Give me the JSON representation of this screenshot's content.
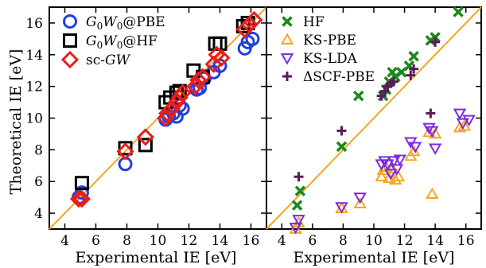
{
  "chart_data": [
    {
      "type": "scatter",
      "panel": "left",
      "xlabel": "Experimental IE [eV]",
      "ylabel": "Theoretical IE [eV]",
      "xlim": [
        3,
        17
      ],
      "ylim": [
        3,
        17
      ],
      "xticks": [
        4,
        6,
        8,
        10,
        12,
        14,
        16
      ],
      "yticks": [
        4,
        6,
        8,
        10,
        12,
        14,
        16
      ],
      "legend_position": "top-left",
      "diagonal_line": {
        "from": [
          3,
          3
        ],
        "to": [
          17,
          17
        ],
        "color": "#f5a623"
      },
      "series": [
        {
          "name": "G0W0@PBE",
          "legend_label": [
            "G",
            "0",
            "W",
            "0",
            "@PBE"
          ],
          "marker": "circle",
          "color": "#1f3fe0",
          "points": [
            [
              4.9,
              5.0
            ],
            [
              5.1,
              5.3
            ],
            [
              7.9,
              7.1
            ],
            [
              10.5,
              9.9
            ],
            [
              10.7,
              10.1
            ],
            [
              11.0,
              10.3
            ],
            [
              11.2,
              10.1
            ],
            [
              11.4,
              10.8
            ],
            [
              11.6,
              10.6
            ],
            [
              12.5,
              11.8
            ],
            [
              12.7,
              11.9
            ],
            [
              13.0,
              12.5
            ],
            [
              13.6,
              12.9
            ],
            [
              14.0,
              13.3
            ],
            [
              15.6,
              14.4
            ],
            [
              15.8,
              14.8
            ],
            [
              16.1,
              15.0
            ]
          ]
        },
        {
          "name": "G0W0@HF",
          "legend_label": [
            "G",
            "0",
            "W",
            "0",
            "@HF"
          ],
          "marker": "square",
          "color": "#000000",
          "points": [
            [
              5.1,
              5.9
            ],
            [
              7.9,
              8.1
            ],
            [
              9.2,
              8.3
            ],
            [
              10.5,
              11.0
            ],
            [
              10.8,
              11.3
            ],
            [
              11.2,
              11.6
            ],
            [
              11.4,
              11.7
            ],
            [
              12.3,
              13.0
            ],
            [
              12.9,
              12.6
            ],
            [
              13.7,
              14.7
            ],
            [
              14.0,
              14.7
            ],
            [
              15.5,
              15.8
            ],
            [
              15.8,
              16.0
            ]
          ]
        },
        {
          "name": "sc-GW",
          "legend_label": [
            "sc-",
            "GW"
          ],
          "marker": "diamond",
          "color": "#e61e1e",
          "points": [
            [
              4.9,
              4.9
            ],
            [
              5.1,
              4.9
            ],
            [
              7.9,
              7.9
            ],
            [
              9.2,
              8.8
            ],
            [
              10.5,
              10.0
            ],
            [
              10.6,
              10.3
            ],
            [
              10.9,
              10.6
            ],
            [
              11.2,
              11.0
            ],
            [
              11.4,
              11.3
            ],
            [
              11.6,
              11.6
            ],
            [
              12.4,
              12.0
            ],
            [
              12.6,
              12.4
            ],
            [
              12.9,
              12.6
            ],
            [
              13.6,
              13.4
            ],
            [
              13.8,
              14.0
            ],
            [
              14.1,
              13.8
            ],
            [
              15.6,
              15.6
            ],
            [
              15.9,
              15.9
            ],
            [
              16.2,
              16.2
            ]
          ]
        }
      ]
    },
    {
      "type": "scatter",
      "panel": "right",
      "xlabel": "Experimental IE [eV]",
      "ylabel": "",
      "xlim": [
        3,
        17
      ],
      "ylim": [
        3,
        17
      ],
      "xticks": [
        4,
        6,
        8,
        10,
        12,
        14,
        16
      ],
      "yticks": [
        4,
        6,
        8,
        10,
        12,
        14,
        16
      ],
      "legend_position": "top-left",
      "diagonal_line": {
        "from": [
          3,
          3
        ],
        "to": [
          17,
          17
        ],
        "color": "#f5a623"
      },
      "series": [
        {
          "name": "HF",
          "legend_label": [
            "HF"
          ],
          "marker": "x",
          "color": "#1a8a1a",
          "points": [
            [
              5.0,
              4.5
            ],
            [
              5.2,
              5.4
            ],
            [
              7.9,
              8.2
            ],
            [
              9.0,
              11.4
            ],
            [
              10.6,
              11.4
            ],
            [
              10.8,
              11.8
            ],
            [
              11.0,
              12.3
            ],
            [
              11.2,
              12.9
            ],
            [
              11.4,
              12.6
            ],
            [
              11.8,
              12.9
            ],
            [
              12.3,
              13.3
            ],
            [
              12.6,
              13.9
            ],
            [
              13.7,
              14.9
            ],
            [
              14.0,
              15.1
            ],
            [
              15.5,
              16.7
            ]
          ]
        },
        {
          "name": "KS-PBE",
          "legend_label": [
            "KS-PBE"
          ],
          "marker": "triangle-up",
          "color": "#f5a623",
          "points": [
            [
              4.9,
              3.0
            ],
            [
              5.1,
              3.4
            ],
            [
              7.9,
              4.3
            ],
            [
              9.1,
              4.6
            ],
            [
              10.5,
              6.3
            ],
            [
              10.6,
              6.7
            ],
            [
              10.8,
              6.9
            ],
            [
              11.0,
              6.2
            ],
            [
              11.2,
              6.8
            ],
            [
              11.4,
              6.1
            ],
            [
              11.6,
              6.3
            ],
            [
              12.4,
              7.6
            ],
            [
              12.6,
              7.9
            ],
            [
              13.6,
              9.1
            ],
            [
              13.8,
              5.2
            ],
            [
              14.0,
              9.0
            ],
            [
              15.6,
              9.4
            ],
            [
              15.9,
              9.5
            ]
          ]
        },
        {
          "name": "KS-LDA",
          "legend_label": [
            "KS-LDA"
          ],
          "marker": "triangle-down",
          "color": "#7a2ae0",
          "points": [
            [
              4.9,
              3.1
            ],
            [
              5.1,
              3.6
            ],
            [
              7.9,
              4.4
            ],
            [
              9.1,
              5.0
            ],
            [
              10.5,
              7.1
            ],
            [
              10.7,
              7.3
            ],
            [
              10.9,
              7.1
            ],
            [
              11.1,
              6.5
            ],
            [
              11.3,
              7.3
            ],
            [
              11.5,
              6.8
            ],
            [
              11.7,
              7.4
            ],
            [
              12.4,
              8.5
            ],
            [
              12.7,
              8.2
            ],
            [
              13.6,
              9.4
            ],
            [
              13.8,
              9.2
            ],
            [
              14.0,
              8.1
            ],
            [
              15.6,
              10.3
            ],
            [
              15.8,
              9.7
            ],
            [
              16.2,
              9.9
            ]
          ]
        },
        {
          "name": "ΔSCF-PBE",
          "legend_label": [
            "ΔSCF-PBE"
          ],
          "marker": "plus",
          "color": "#5b1a5b",
          "points": [
            [
              5.1,
              6.3
            ],
            [
              7.9,
              9.2
            ],
            [
              10.5,
              11.4
            ],
            [
              10.7,
              11.7
            ],
            [
              10.9,
              12.0
            ],
            [
              11.1,
              12.2
            ],
            [
              11.3,
              12.3
            ],
            [
              12.4,
              12.7
            ],
            [
              12.6,
              13.1
            ],
            [
              13.7,
              10.3
            ],
            [
              14.0,
              14.8
            ]
          ]
        }
      ]
    }
  ]
}
